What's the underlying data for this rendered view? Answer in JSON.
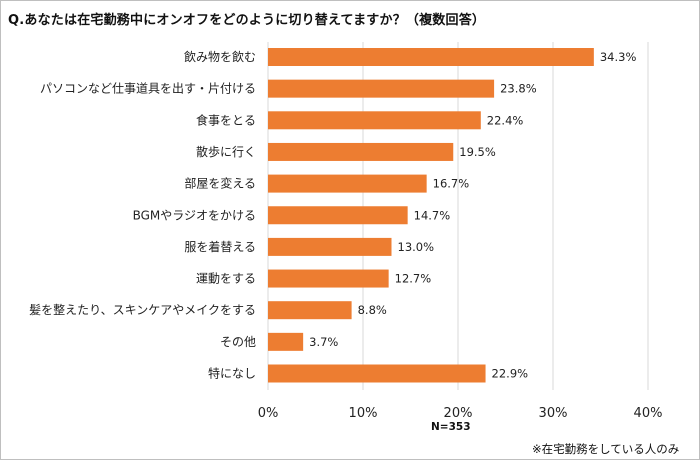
{
  "title": "Q.あなたは在宅勤務中にオンオフをどのように切り替えてますか？（複数回答）",
  "sample_note": "N=353",
  "footnote": "※在宅勤務をしている人のみ",
  "colors": {
    "bar": "#ED7D31",
    "grid": "#d9d9d9"
  },
  "chart_data": {
    "type": "bar",
    "orientation": "horizontal",
    "categories": [
      "飲み物を飲む",
      "パソコンなど仕事道具を出す・片付ける",
      "食事をとる",
      "散歩に行く",
      "部屋を変える",
      "BGMやラジオをかける",
      "服を着替える",
      "運動をする",
      "髪を整えたり、スキンケアやメイクをする",
      "その他",
      "特になし"
    ],
    "values": [
      34.3,
      23.8,
      22.4,
      19.5,
      16.7,
      14.7,
      13.0,
      12.7,
      8.8,
      3.7,
      22.9
    ],
    "value_labels": [
      "34.3%",
      "23.8%",
      "22.4%",
      "19.5%",
      "16.7%",
      "14.7%",
      "13.0%",
      "12.7%",
      "8.8%",
      "3.7%",
      "22.9%"
    ],
    "xlim": [
      0,
      40
    ],
    "xticks": [
      0,
      10,
      20,
      30,
      40
    ],
    "xtick_labels": [
      "0%",
      "10%",
      "20%",
      "30%",
      "40%"
    ],
    "grid": true,
    "legend": "none"
  }
}
